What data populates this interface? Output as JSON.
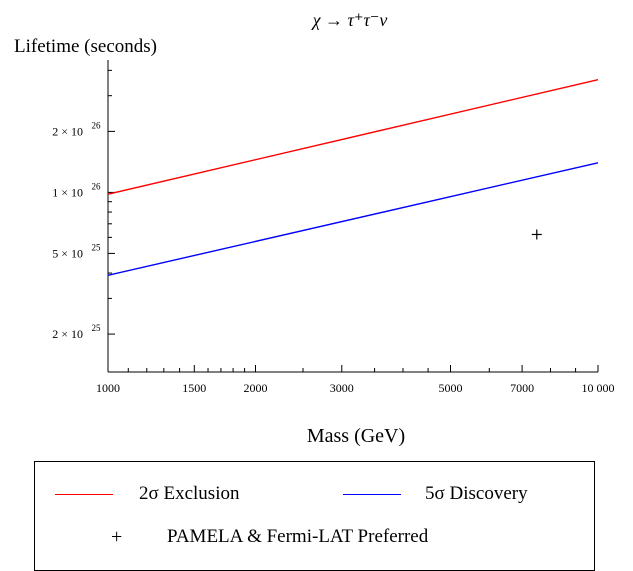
{
  "chart_data": {
    "type": "line",
    "title": "χ → τ⁺τ⁻ν",
    "xlabel": "Mass (GeV)",
    "ylabel": "Lifetime (seconds)",
    "x_scale": "log",
    "y_scale": "log",
    "xlim": [
      1000,
      10000
    ],
    "ylim": [
      1.3e+25,
      4.5e+26
    ],
    "x_major_ticks": [
      {
        "value": 1000,
        "label": "1000"
      },
      {
        "value": 1500,
        "label": "1500"
      },
      {
        "value": 2000,
        "label": "2000"
      },
      {
        "value": 3000,
        "label": "3000"
      },
      {
        "value": 5000,
        "label": "5000"
      },
      {
        "value": 7000,
        "label": "7000"
      },
      {
        "value": 10000,
        "label": "10 000"
      }
    ],
    "x_minor_ticks": [
      1100,
      1200,
      1300,
      1400,
      1600,
      1700,
      1800,
      1900,
      2500,
      3500,
      4000,
      4500,
      6000,
      8000,
      9000
    ],
    "y_major_ticks": [
      {
        "value": 2e+25,
        "mantissa": "2",
        "exponent": "25"
      },
      {
        "value": 5e+25,
        "mantissa": "5",
        "exponent": "25"
      },
      {
        "value": 1e+26,
        "mantissa": "1",
        "exponent": "26"
      },
      {
        "value": 2e+26,
        "mantissa": "2",
        "exponent": "26"
      }
    ],
    "y_minor_ticks": [
      3e+25,
      4e+25,
      6e+25,
      7e+25,
      8e+25,
      9e+25,
      3e+26,
      4e+26
    ],
    "grid": false,
    "series": [
      {
        "name": "2σ Exclusion",
        "color": "#ff0000",
        "x": [
          1000,
          10000
        ],
        "y": [
          9.8e+25,
          3.6e+26
        ]
      },
      {
        "name": "5σ Discovery",
        "color": "#0000ff",
        "x": [
          1000,
          10000
        ],
        "y": [
          3.9e+25,
          1.4e+26
        ]
      }
    ],
    "points": [
      {
        "name": "PAMELA & Fermi-LAT Preferred",
        "marker": "+",
        "x": 7500,
        "y": 6.2e+25
      }
    ],
    "legend_position": "bottom",
    "legend_marker_symbol": "+"
  }
}
